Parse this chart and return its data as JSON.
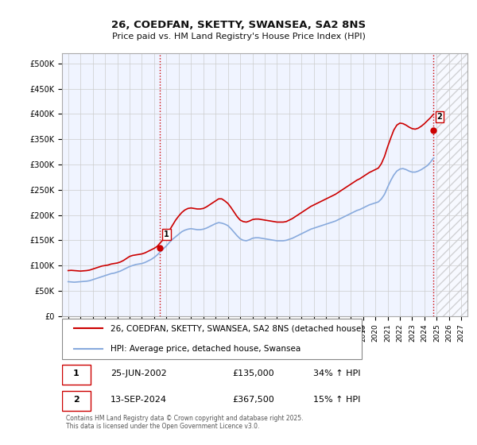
{
  "title_line1": "26, COEDFAN, SKETTY, SWANSEA, SA2 8NS",
  "title_line2": "Price paid vs. HM Land Registry's House Price Index (HPI)",
  "xmin": 1994.5,
  "xmax": 2027.5,
  "ymin": 0,
  "ymax": 520000,
  "yticks": [
    0,
    50000,
    100000,
    150000,
    200000,
    250000,
    300000,
    350000,
    400000,
    450000,
    500000
  ],
  "ytick_labels": [
    "£0",
    "£50K",
    "£100K",
    "£150K",
    "£200K",
    "£250K",
    "£300K",
    "£350K",
    "£400K",
    "£450K",
    "£500K"
  ],
  "xticks": [
    1995,
    1996,
    1997,
    1998,
    1999,
    2000,
    2001,
    2002,
    2003,
    2004,
    2005,
    2006,
    2007,
    2008,
    2009,
    2010,
    2011,
    2012,
    2013,
    2014,
    2015,
    2016,
    2017,
    2018,
    2019,
    2020,
    2021,
    2022,
    2023,
    2024,
    2025,
    2026,
    2027
  ],
  "grid_color": "#cccccc",
  "background_color": "#ffffff",
  "plot_bg_color": "#f0f4ff",
  "red_line_color": "#cc0000",
  "blue_line_color": "#88aadd",
  "vline_color": "#cc0000",
  "vline_style": ":",
  "marker1_x": 2002.48,
  "marker1_y": 135000,
  "marker2_x": 2024.71,
  "marker2_y": 367500,
  "marker1_label": "1",
  "marker2_label": "2",
  "legend_label1": "26, COEDFAN, SKETTY, SWANSEA, SA2 8NS (detached house)",
  "legend_label2": "HPI: Average price, detached house, Swansea",
  "table_row1": [
    "1",
    "25-JUN-2002",
    "£135,000",
    "34% ↑ HPI"
  ],
  "table_row2": [
    "2",
    "13-SEP-2024",
    "£367,500",
    "15% ↑ HPI"
  ],
  "footer": "Contains HM Land Registry data © Crown copyright and database right 2025.\nThis data is licensed under the Open Government Licence v3.0.",
  "hpi_data_x": [
    1995.0,
    1995.25,
    1995.5,
    1995.75,
    1996.0,
    1996.25,
    1996.5,
    1996.75,
    1997.0,
    1997.25,
    1997.5,
    1997.75,
    1998.0,
    1998.25,
    1998.5,
    1998.75,
    1999.0,
    1999.25,
    1999.5,
    1999.75,
    2000.0,
    2000.25,
    2000.5,
    2000.75,
    2001.0,
    2001.25,
    2001.5,
    2001.75,
    2002.0,
    2002.25,
    2002.5,
    2002.75,
    2003.0,
    2003.25,
    2003.5,
    2003.75,
    2004.0,
    2004.25,
    2004.5,
    2004.75,
    2005.0,
    2005.25,
    2005.5,
    2005.75,
    2006.0,
    2006.25,
    2006.5,
    2006.75,
    2007.0,
    2007.25,
    2007.5,
    2007.75,
    2008.0,
    2008.25,
    2008.5,
    2008.75,
    2009.0,
    2009.25,
    2009.5,
    2009.75,
    2010.0,
    2010.25,
    2010.5,
    2010.75,
    2011.0,
    2011.25,
    2011.5,
    2011.75,
    2012.0,
    2012.25,
    2012.5,
    2012.75,
    2013.0,
    2013.25,
    2013.5,
    2013.75,
    2014.0,
    2014.25,
    2014.5,
    2014.75,
    2015.0,
    2015.25,
    2015.5,
    2015.75,
    2016.0,
    2016.25,
    2016.5,
    2016.75,
    2017.0,
    2017.25,
    2017.5,
    2017.75,
    2018.0,
    2018.25,
    2018.5,
    2018.75,
    2019.0,
    2019.25,
    2019.5,
    2019.75,
    2020.0,
    2020.25,
    2020.5,
    2020.75,
    2021.0,
    2021.25,
    2021.5,
    2021.75,
    2022.0,
    2022.25,
    2022.5,
    2022.75,
    2023.0,
    2023.25,
    2023.5,
    2023.75,
    2024.0,
    2024.25,
    2024.5,
    2024.75
  ],
  "hpi_data_y": [
    68000,
    67500,
    67000,
    67500,
    68000,
    68500,
    69000,
    70000,
    72000,
    74000,
    76000,
    78000,
    80000,
    82000,
    84000,
    85000,
    87000,
    89000,
    92000,
    95000,
    98000,
    100000,
    102000,
    103000,
    104000,
    106000,
    109000,
    112000,
    116000,
    121000,
    127000,
    133000,
    139000,
    146000,
    152000,
    157000,
    162000,
    167000,
    170000,
    172000,
    173000,
    172000,
    171000,
    171000,
    172000,
    174000,
    177000,
    180000,
    183000,
    185000,
    184000,
    182000,
    179000,
    173000,
    166000,
    159000,
    153000,
    150000,
    149000,
    151000,
    154000,
    155000,
    155000,
    154000,
    153000,
    152000,
    151000,
    150000,
    149000,
    149000,
    149000,
    150000,
    152000,
    154000,
    157000,
    160000,
    163000,
    166000,
    169000,
    172000,
    174000,
    176000,
    178000,
    180000,
    182000,
    184000,
    186000,
    188000,
    191000,
    194000,
    197000,
    200000,
    203000,
    206000,
    209000,
    211000,
    214000,
    217000,
    220000,
    222000,
    224000,
    226000,
    232000,
    241000,
    255000,
    268000,
    279000,
    287000,
    291000,
    292000,
    290000,
    287000,
    285000,
    285000,
    287000,
    290000,
    294000,
    298000,
    305000,
    313000
  ],
  "price_data_x": [
    1995.0,
    1995.25,
    1995.5,
    1995.75,
    1996.0,
    1996.25,
    1996.5,
    1996.75,
    1997.0,
    1997.25,
    1997.5,
    1997.75,
    1998.0,
    1998.25,
    1998.5,
    1998.75,
    1999.0,
    1999.25,
    1999.5,
    1999.75,
    2000.0,
    2000.25,
    2000.5,
    2000.75,
    2001.0,
    2001.25,
    2001.5,
    2001.75,
    2002.0,
    2002.25,
    2002.5,
    2002.75,
    2003.0,
    2003.25,
    2003.5,
    2003.75,
    2004.0,
    2004.25,
    2004.5,
    2004.75,
    2005.0,
    2005.25,
    2005.5,
    2005.75,
    2006.0,
    2006.25,
    2006.5,
    2006.75,
    2007.0,
    2007.25,
    2007.5,
    2007.75,
    2008.0,
    2008.25,
    2008.5,
    2008.75,
    2009.0,
    2009.25,
    2009.5,
    2009.75,
    2010.0,
    2010.25,
    2010.5,
    2010.75,
    2011.0,
    2011.25,
    2011.5,
    2011.75,
    2012.0,
    2012.25,
    2012.5,
    2012.75,
    2013.0,
    2013.25,
    2013.5,
    2013.75,
    2014.0,
    2014.25,
    2014.5,
    2014.75,
    2015.0,
    2015.25,
    2015.5,
    2015.75,
    2016.0,
    2016.25,
    2016.5,
    2016.75,
    2017.0,
    2017.25,
    2017.5,
    2017.75,
    2018.0,
    2018.25,
    2018.5,
    2018.75,
    2019.0,
    2019.25,
    2019.5,
    2019.75,
    2020.0,
    2020.25,
    2020.5,
    2020.75,
    2021.0,
    2021.25,
    2021.5,
    2021.75,
    2022.0,
    2022.25,
    2022.5,
    2022.75,
    2023.0,
    2023.25,
    2023.5,
    2023.75,
    2024.0,
    2024.25,
    2024.5,
    2024.75
  ],
  "price_data_y": [
    90000,
    90500,
    90000,
    89500,
    89000,
    89500,
    90000,
    91000,
    93000,
    95000,
    97000,
    99000,
    100000,
    101000,
    103000,
    104000,
    105000,
    107000,
    110000,
    114000,
    118000,
    120000,
    121000,
    122000,
    123000,
    125000,
    128000,
    131000,
    134000,
    138000,
    145000,
    152000,
    160000,
    170000,
    180000,
    190000,
    198000,
    205000,
    210000,
    213000,
    214000,
    213000,
    212000,
    212000,
    213000,
    216000,
    220000,
    224000,
    228000,
    232000,
    232000,
    228000,
    223000,
    215000,
    206000,
    197000,
    190000,
    187000,
    186000,
    188000,
    191000,
    192000,
    192000,
    191000,
    190000,
    189000,
    188000,
    187000,
    186000,
    186000,
    186000,
    187000,
    190000,
    193000,
    197000,
    201000,
    205000,
    209000,
    213000,
    217000,
    220000,
    223000,
    226000,
    229000,
    232000,
    235000,
    238000,
    241000,
    245000,
    249000,
    253000,
    257000,
    261000,
    265000,
    269000,
    272000,
    276000,
    280000,
    284000,
    287000,
    290000,
    293000,
    302000,
    316000,
    335000,
    352000,
    368000,
    378000,
    382000,
    381000,
    378000,
    374000,
    371000,
    370000,
    372000,
    376000,
    381000,
    387000,
    393000,
    400000
  ]
}
